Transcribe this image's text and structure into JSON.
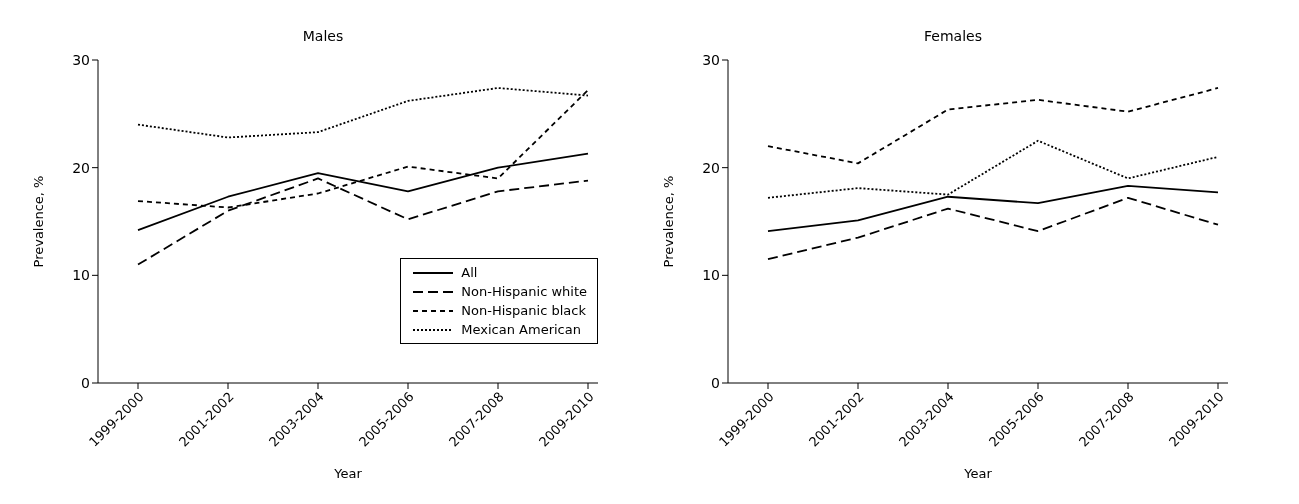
{
  "chart_data": [
    {
      "type": "line",
      "title": "Males",
      "xlabel": "Year",
      "ylabel": "Prevalence, %",
      "categories": [
        "1999-2000",
        "2001-2002",
        "2003-2004",
        "2005-2006",
        "2007-2008",
        "2009-2010"
      ],
      "ylim": [
        0,
        30
      ],
      "yticks": [
        0,
        10,
        20,
        30
      ],
      "legend": "bottom right",
      "marker": "none",
      "series": [
        {
          "name": "All",
          "color": "#000000",
          "line_style": "solid",
          "values": [
            14.2,
            17.3,
            19.5,
            17.8,
            20.0,
            21.3
          ]
        },
        {
          "name": "Non-Hispanic white",
          "color": "#000000",
          "line_style": "dashed",
          "values": [
            11.0,
            16.0,
            19.0,
            15.2,
            17.8,
            18.8
          ]
        },
        {
          "name": "Non-Hispanic black",
          "color": "#000000",
          "line_style": "dashed",
          "values": [
            16.9,
            16.3,
            17.6,
            20.1,
            19.0,
            27.2
          ]
        },
        {
          "name": "Mexican American",
          "color": "#000000",
          "line_style": "dotted",
          "values": [
            24.0,
            22.8,
            23.3,
            26.2,
            27.4,
            26.7
          ]
        }
      ]
    },
    {
      "type": "line",
      "title": "Females",
      "xlabel": "Year",
      "ylabel": "Prevalence, %",
      "categories": [
        "1999-2000",
        "2001-2002",
        "2003-2004",
        "2005-2006",
        "2007-2008",
        "2009-2010"
      ],
      "ylim": [
        0,
        30
      ],
      "yticks": [
        0,
        10,
        20,
        30
      ],
      "legend": false,
      "marker": "none",
      "series": [
        {
          "color": "#000000",
          "line_style": "solid",
          "values": [
            14.1,
            15.1,
            17.3,
            16.7,
            18.3,
            17.7
          ]
        },
        {
          "color": "#000000",
          "line_style": "dashed",
          "values": [
            11.5,
            13.5,
            16.2,
            14.1,
            17.2,
            14.7
          ]
        },
        {
          "color": "#000000",
          "line_style": "dashed",
          "values": [
            22.0,
            20.4,
            25.4,
            26.3,
            25.2,
            27.4
          ]
        },
        {
          "color": "#000000",
          "line_style": "dotted",
          "values": [
            17.2,
            18.1,
            17.5,
            22.5,
            19.0,
            21.0
          ]
        }
      ]
    }
  ]
}
